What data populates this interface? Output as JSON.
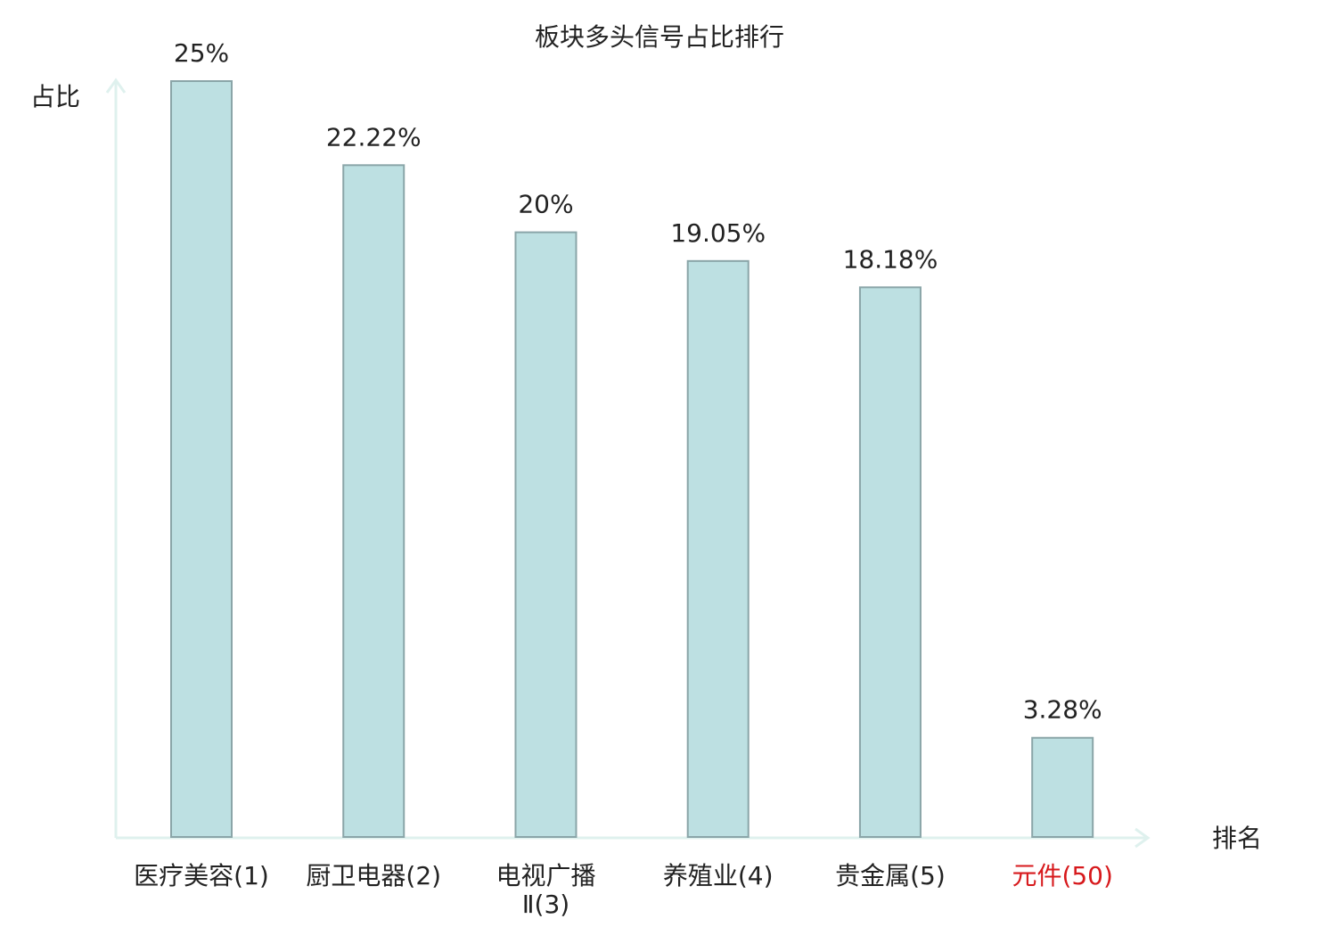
{
  "chart_data": {
    "type": "bar",
    "title": "板块多头信号占比排行",
    "y_label": "占比",
    "x_label": "排名",
    "categories": [
      "医疗美容(1)",
      "厨卫电器(2)",
      "电视广播Ⅱ(3)",
      "养殖业(4)",
      "贵金属(5)",
      "元件(50)"
    ],
    "category_colors": [
      "#222222",
      "#222222",
      "#222222",
      "#222222",
      "#222222",
      "#d7191c"
    ],
    "values": [
      25,
      22.22,
      20,
      19.05,
      18.18,
      3.28
    ],
    "value_labels": [
      "25%",
      "22.22%",
      "20%",
      "19.05%",
      "18.18%",
      "3.28%"
    ],
    "color": "#bde0e2",
    "ylim": [
      0,
      25
    ]
  }
}
